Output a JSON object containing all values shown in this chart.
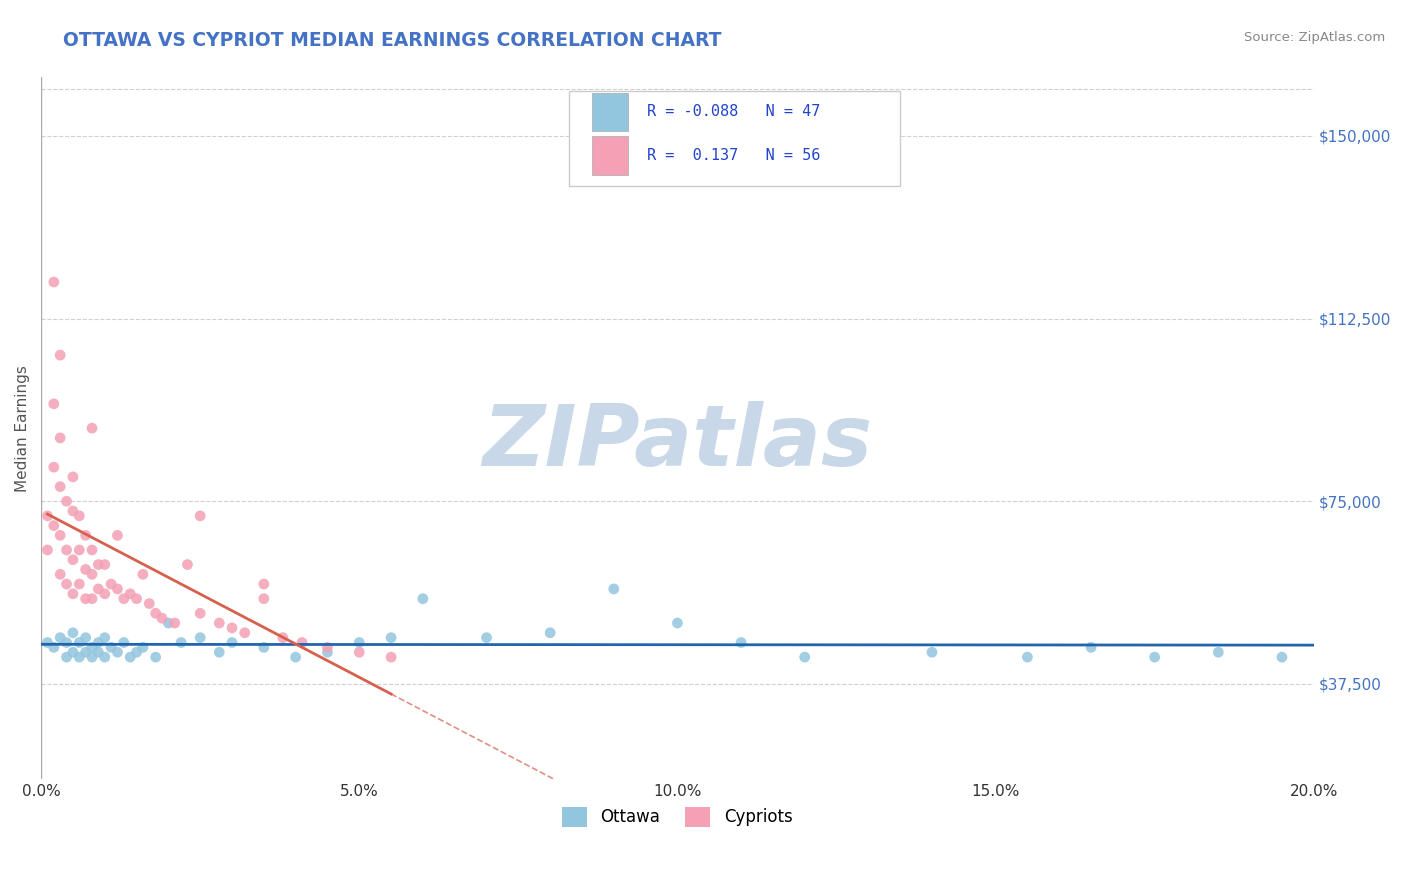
{
  "title": "OTTAWA VS CYPRIOT MEDIAN EARNINGS CORRELATION CHART",
  "source": "Source: ZipAtlas.com",
  "ylabel": "Median Earnings",
  "xmin": 0.0,
  "xmax": 0.2,
  "ymin": 18000,
  "ymax": 162000,
  "yticks": [
    37500,
    75000,
    112500,
    150000
  ],
  "ytick_labels": [
    "$37,500",
    "$75,000",
    "$112,500",
    "$150,000"
  ],
  "xticks": [
    0.0,
    0.05,
    0.1,
    0.15,
    0.2
  ],
  "xtick_labels": [
    "0.0%",
    "5.0%",
    "10.0%",
    "15.0%",
    "20.0%"
  ],
  "r_ottawa": -0.088,
  "n_ottawa": 47,
  "r_cypriot": 0.137,
  "n_cypriot": 56,
  "color_ottawa": "#92c5de",
  "color_cypriot": "#f4a0b5",
  "trendline_color_ottawa": "#2166ac",
  "trendline_color_cypriot": "#d6604d",
  "watermark": "ZIPatlas",
  "watermark_color": "#c8d8e8",
  "background_color": "#ffffff",
  "title_color": "#4472c4",
  "ytick_color": "#4472c4",
  "ottawa_x": [
    0.001,
    0.002,
    0.003,
    0.004,
    0.004,
    0.005,
    0.005,
    0.006,
    0.006,
    0.007,
    0.007,
    0.008,
    0.008,
    0.009,
    0.009,
    0.01,
    0.01,
    0.011,
    0.012,
    0.013,
    0.014,
    0.015,
    0.016,
    0.018,
    0.02,
    0.022,
    0.025,
    0.028,
    0.03,
    0.035,
    0.04,
    0.045,
    0.05,
    0.055,
    0.06,
    0.07,
    0.08,
    0.09,
    0.1,
    0.11,
    0.12,
    0.14,
    0.155,
    0.165,
    0.175,
    0.185,
    0.195
  ],
  "ottawa_y": [
    46000,
    45000,
    47000,
    43000,
    46000,
    48000,
    44000,
    46000,
    43000,
    47000,
    44000,
    45000,
    43000,
    46000,
    44000,
    47000,
    43000,
    45000,
    44000,
    46000,
    43000,
    44000,
    45000,
    43000,
    50000,
    46000,
    47000,
    44000,
    46000,
    45000,
    43000,
    44000,
    46000,
    47000,
    55000,
    47000,
    48000,
    57000,
    50000,
    46000,
    43000,
    44000,
    43000,
    45000,
    43000,
    44000,
    43000
  ],
  "cypriot_x": [
    0.001,
    0.001,
    0.002,
    0.002,
    0.002,
    0.003,
    0.003,
    0.003,
    0.003,
    0.004,
    0.004,
    0.004,
    0.005,
    0.005,
    0.005,
    0.005,
    0.006,
    0.006,
    0.006,
    0.007,
    0.007,
    0.007,
    0.008,
    0.008,
    0.008,
    0.009,
    0.009,
    0.01,
    0.01,
    0.011,
    0.012,
    0.013,
    0.014,
    0.015,
    0.016,
    0.017,
    0.018,
    0.019,
    0.021,
    0.023,
    0.025,
    0.028,
    0.03,
    0.032,
    0.035,
    0.038,
    0.041,
    0.045,
    0.05,
    0.055,
    0.002,
    0.003,
    0.008,
    0.012,
    0.025,
    0.035
  ],
  "cypriot_y": [
    72000,
    65000,
    95000,
    82000,
    70000,
    88000,
    78000,
    68000,
    60000,
    75000,
    65000,
    58000,
    80000,
    73000,
    63000,
    56000,
    72000,
    65000,
    58000,
    68000,
    61000,
    55000,
    65000,
    60000,
    55000,
    62000,
    57000,
    62000,
    56000,
    58000,
    57000,
    55000,
    56000,
    55000,
    60000,
    54000,
    52000,
    51000,
    50000,
    62000,
    52000,
    50000,
    49000,
    48000,
    58000,
    47000,
    46000,
    45000,
    44000,
    43000,
    120000,
    105000,
    90000,
    68000,
    72000,
    55000
  ]
}
